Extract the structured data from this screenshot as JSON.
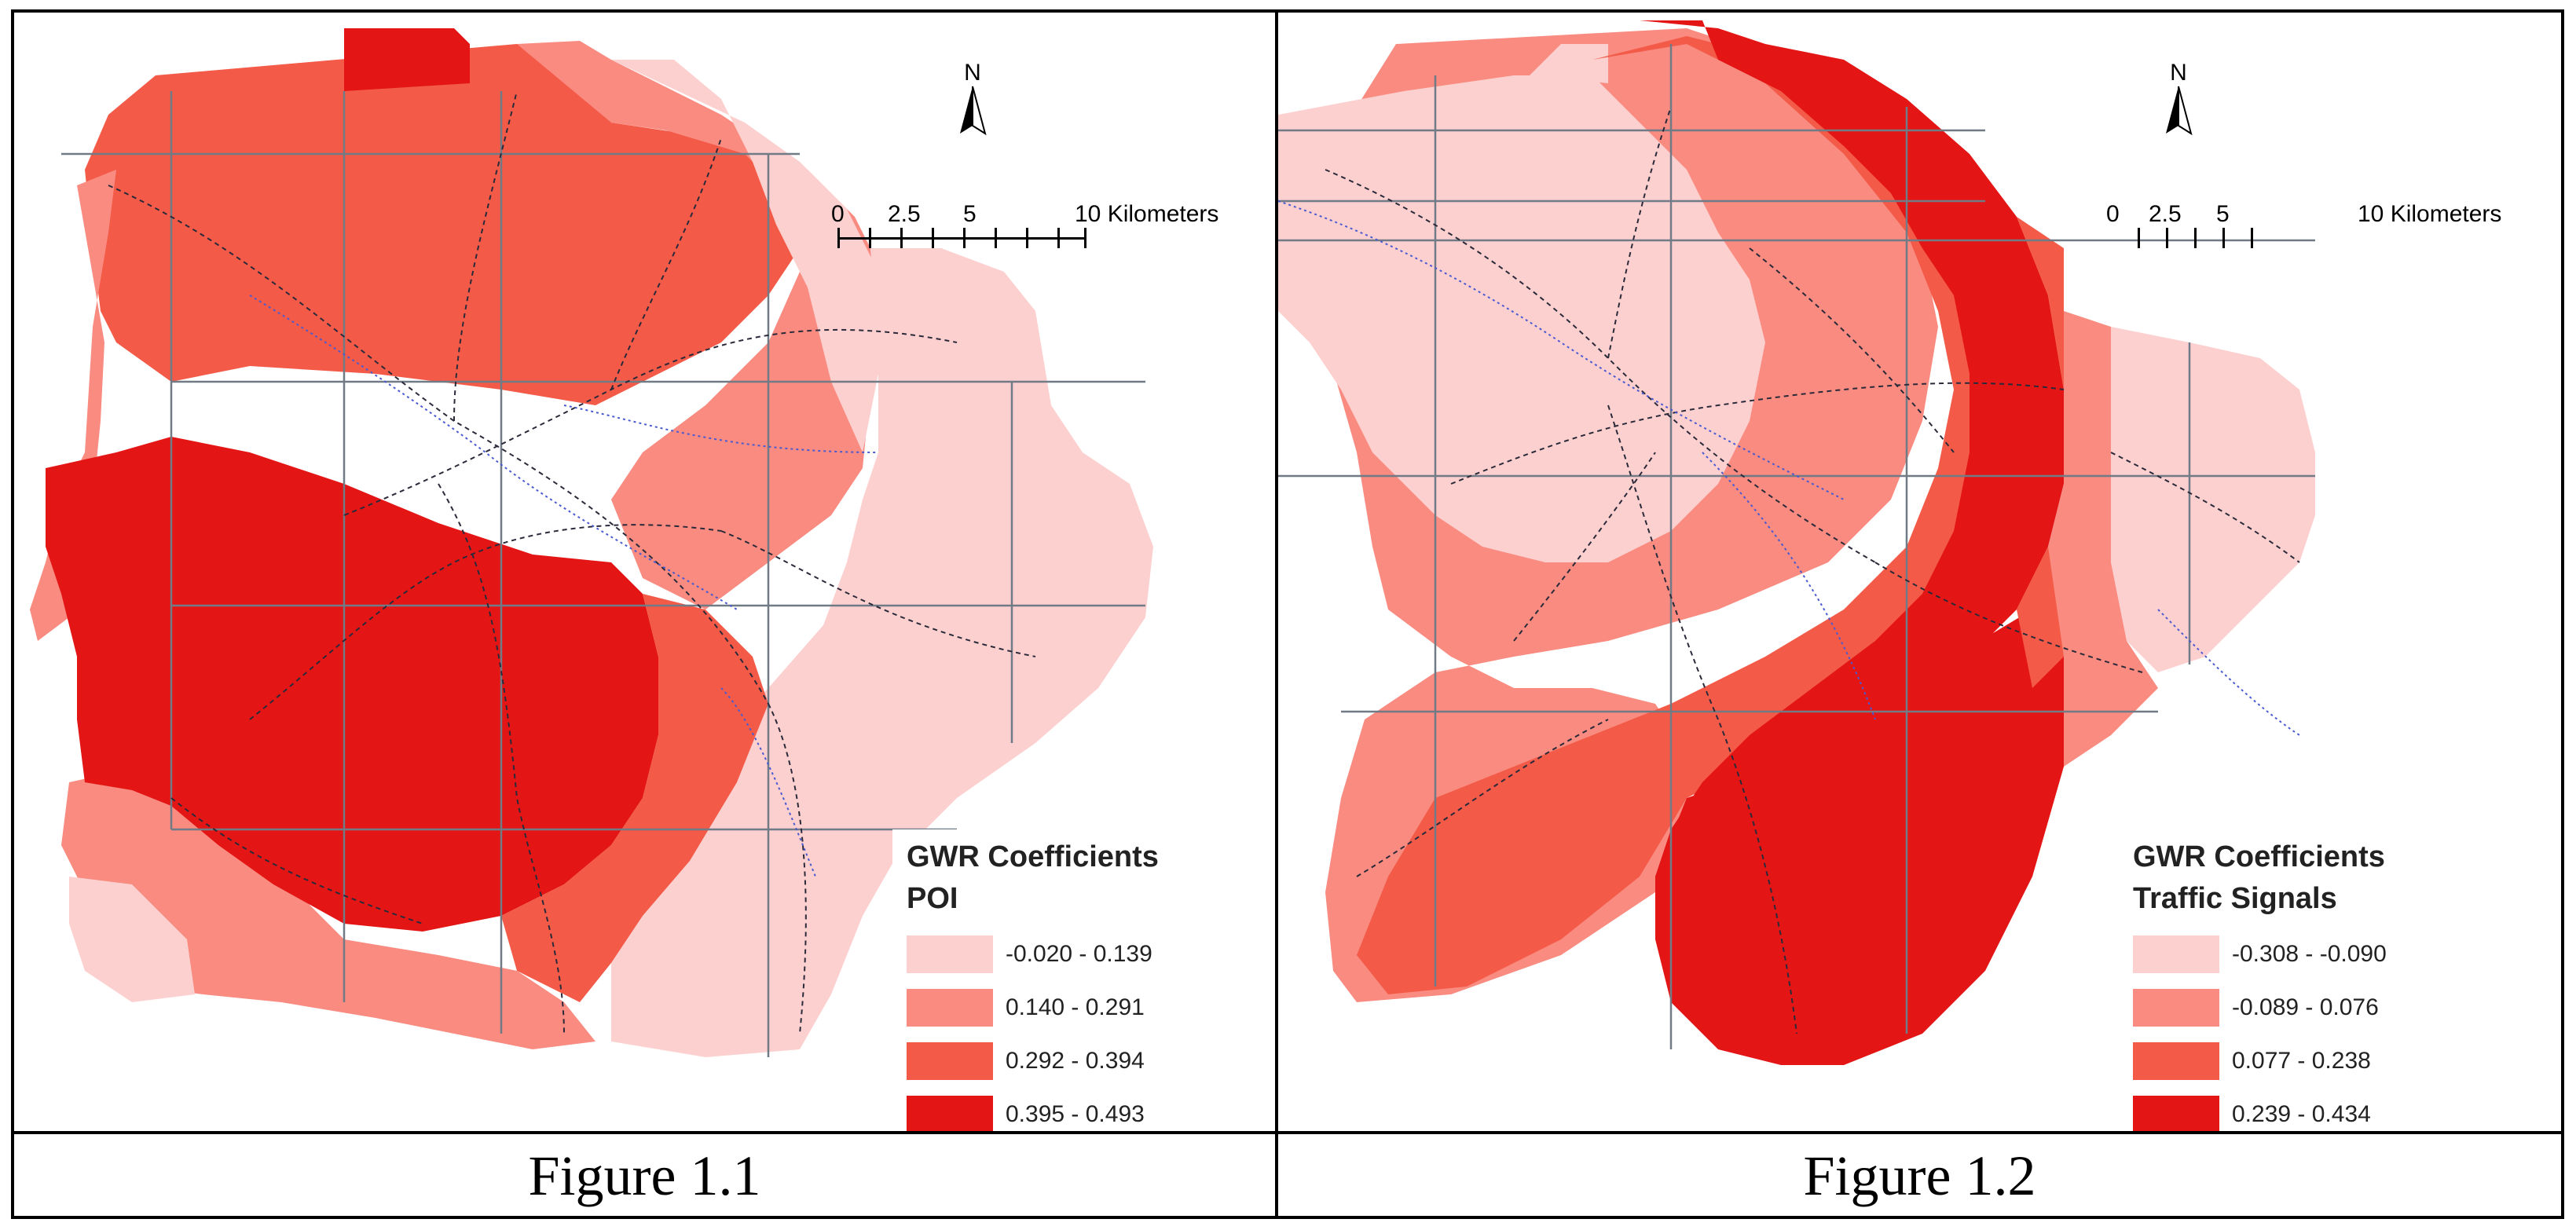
{
  "figures": [
    {
      "caption": "Figure 1.1",
      "north_label": "N",
      "scale": {
        "labels": [
          "0",
          "2.5",
          "5",
          "10 Kilometers"
        ]
      },
      "legend": {
        "title": "GWR Coefficients",
        "subtitle": "POI",
        "classes": [
          {
            "range": "-0.020 - 0.139",
            "color": "#fdd0d0"
          },
          {
            "range": "0.140 - 0.291",
            "color": "#f98b80"
          },
          {
            "range": "0.292 - 0.394",
            "color": "#f35a48"
          },
          {
            "range": "0.395 - 0.493",
            "color": "#e31515"
          }
        ]
      }
    },
    {
      "caption": "Figure 1.2",
      "north_label": "N",
      "scale": {
        "labels": [
          "0",
          "2.5",
          "5",
          "10 Kilometers"
        ]
      },
      "legend": {
        "title": "GWR Coefficients",
        "subtitle": "Traffic Signals",
        "classes": [
          {
            "range": "-0.308 - -0.090",
            "color": "#fdd0d0"
          },
          {
            "range": "-0.089 - 0.076",
            "color": "#f98b80"
          },
          {
            "range": "0.077 - 0.238",
            "color": "#f35a48"
          },
          {
            "range": "0.239 - 0.434",
            "color": "#e31515"
          }
        ]
      }
    }
  ]
}
